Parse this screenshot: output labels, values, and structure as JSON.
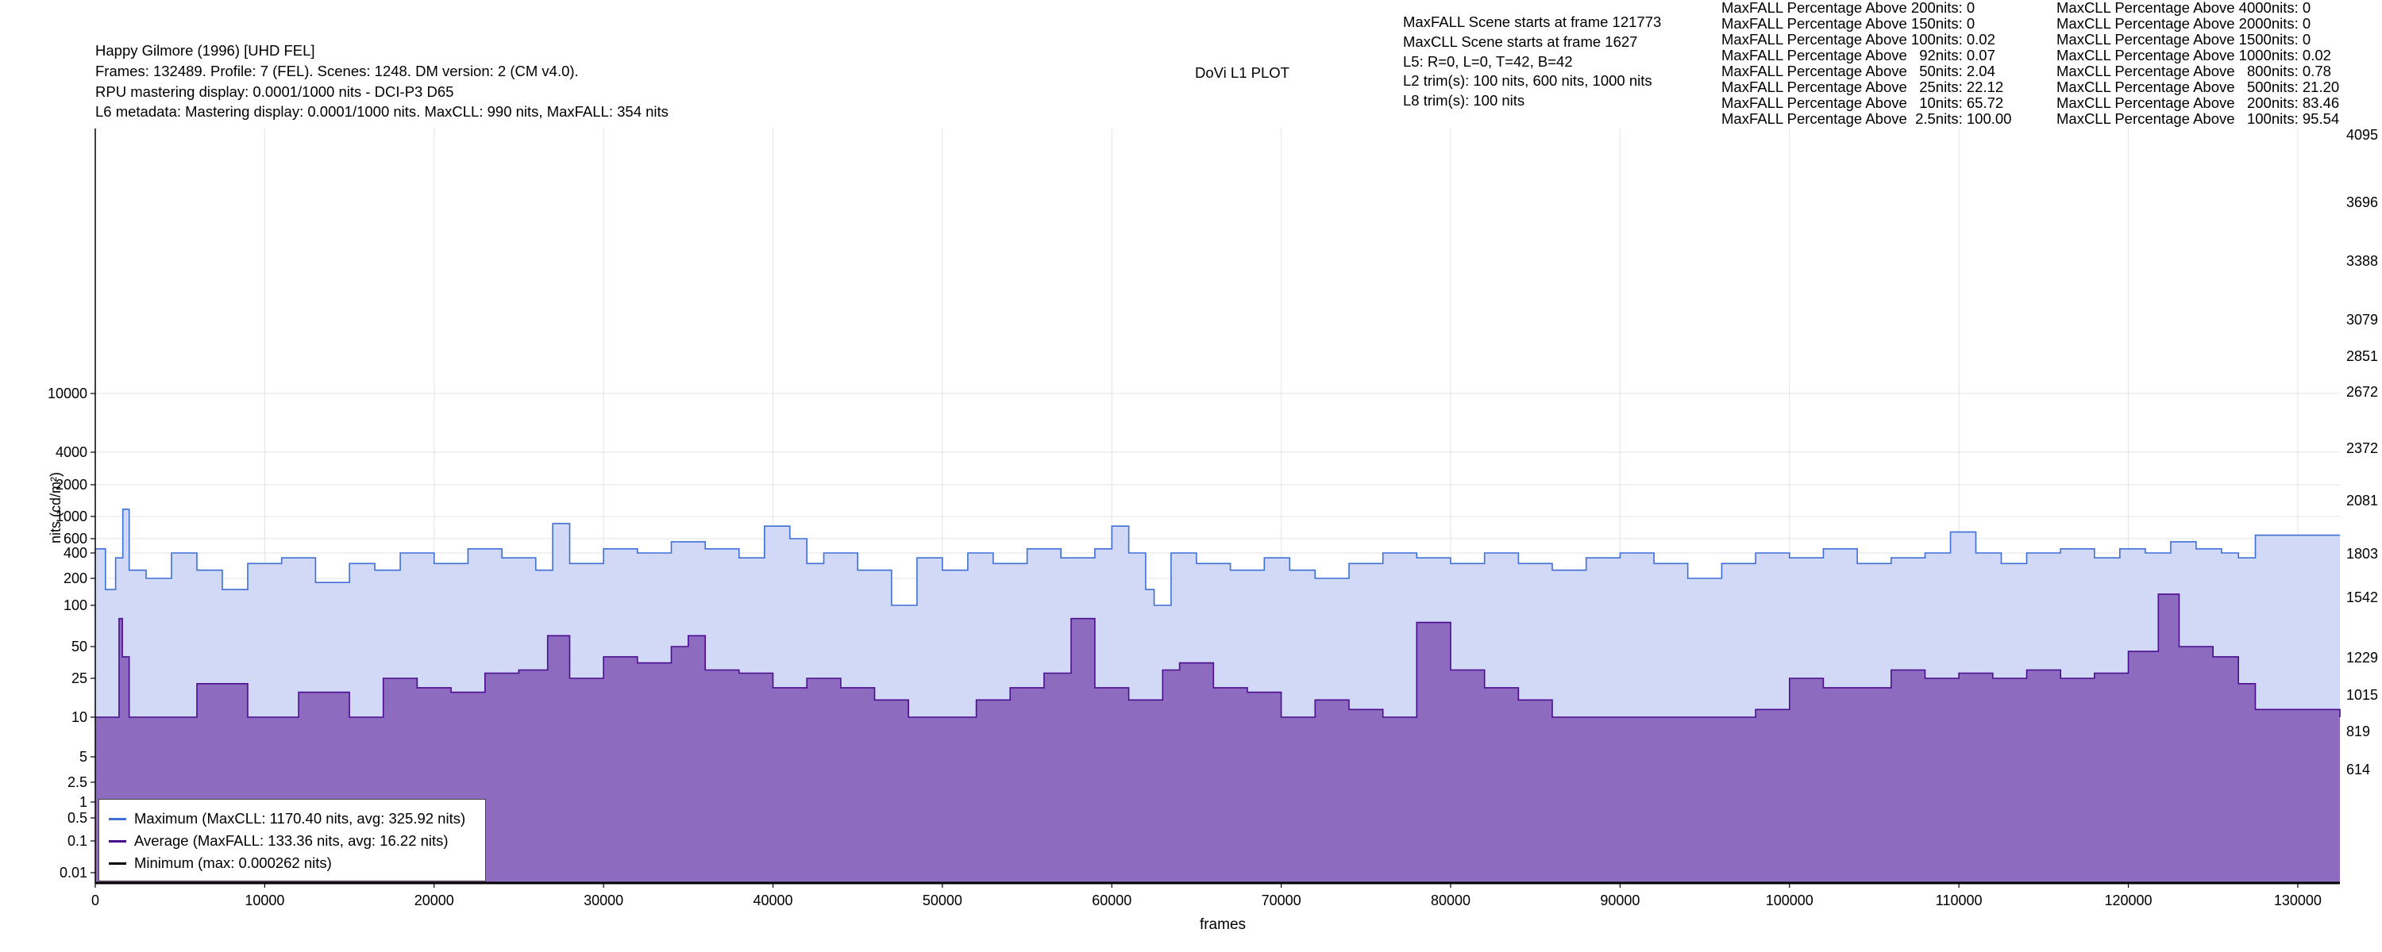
{
  "header": {
    "title": "Happy Gilmore (1996) [UHD FEL]",
    "info_line": "Frames: 132489. Profile: 7 (FEL). Scenes: 1248. DM version: 2 (CM v4.0).",
    "rpu_line": "RPU mastering display: 0.0001/1000 nits - DCI-P3 D65",
    "l6_line": "L6 metadata: Mastering display: 0.0001/1000 nits. MaxCLL: 990 nits, MaxFALL: 354 nits",
    "plot_title": "DoVi L1 PLOT",
    "maxfall_scene": "MaxFALL Scene starts at frame 121773",
    "maxcll_scene": "MaxCLL Scene starts at frame 1627",
    "l5": "L5: R=0, L=0, T=42, B=42",
    "l2": "L2 trim(s): 100 nits, 600 nits, 1000 nits",
    "l8": "L8 trim(s): 100 nits"
  },
  "maxfall_stats": [
    "MaxFALL Percentage Above 200nits: 0",
    "MaxFALL Percentage Above 150nits: 0",
    "MaxFALL Percentage Above 100nits: 0.02",
    "MaxFALL Percentage Above   92nits: 0.07",
    "MaxFALL Percentage Above   50nits: 2.04",
    "MaxFALL Percentage Above   25nits: 22.12",
    "MaxFALL Percentage Above   10nits: 65.72",
    "MaxFALL Percentage Above  2.5nits: 100.00"
  ],
  "maxcll_stats": [
    "MaxCLL Percentage Above 4000nits: 0",
    "MaxCLL Percentage Above 2000nits: 0",
    "MaxCLL Percentage Above 1500nits: 0",
    "MaxCLL Percentage Above 1000nits: 0.02",
    "MaxCLL Percentage Above   800nits: 0.78",
    "MaxCLL Percentage Above   500nits: 21.20",
    "MaxCLL Percentage Above   200nits: 83.46",
    "MaxCLL Percentage Above   100nits: 95.54"
  ],
  "legend": [
    {
      "label": "Maximum (MaxCLL: 1170.40 nits, avg: 325.92 nits)",
      "color": "#3f6fd6"
    },
    {
      "label": "Average (MaxFALL: 133.36 nits, avg: 16.22 nits)",
      "color": "#4b0d8f"
    },
    {
      "label": "Minimum (max: 0.000262 nits)",
      "color": "#000000"
    }
  ],
  "chart_data": {
    "type": "area",
    "xlabel": "frames",
    "ylabel": "nits (cd/m²)",
    "xlim": [
      0,
      132489
    ],
    "x_ticks": [
      0,
      10000,
      20000,
      30000,
      40000,
      50000,
      60000,
      70000,
      80000,
      90000,
      100000,
      110000,
      120000,
      130000
    ],
    "x_tick_labels": [
      "0",
      "10000",
      "20000",
      "30000",
      "40000",
      "50000",
      "60000",
      "70000",
      "80000",
      "90000",
      "100000",
      "110000",
      "120000",
      "130000"
    ],
    "y_tick_labels": [
      "0.01",
      "0.1",
      "0.5",
      "1",
      "2.5",
      "5",
      "10",
      "25",
      "50",
      "100",
      "200",
      "400",
      "600",
      "1000",
      "2000",
      "4000",
      "10000"
    ],
    "y_tick_values": [
      0.01,
      0.1,
      0.5,
      1,
      2.5,
      5,
      10,
      25,
      50,
      100,
      200,
      400,
      600,
      1000,
      2000,
      4000,
      10000
    ],
    "right_tick_labels": [
      "614",
      "819",
      "1015",
      "1229",
      "1542",
      "1803",
      "2081",
      "2372",
      "2672",
      "2851",
      "3079",
      "3388",
      "3696",
      "4095"
    ],
    "grid": true,
    "legend_position": "bottom-left",
    "series": [
      {
        "name": "Maximum",
        "color": "#3f6fd6",
        "fill": "#d1d9f7",
        "x": [
          0,
          600,
          1200,
          1627,
          2000,
          3000,
          4500,
          6000,
          7500,
          9000,
          11000,
          13000,
          15000,
          16500,
          18000,
          20000,
          22000,
          24000,
          26000,
          27000,
          28000,
          30000,
          32000,
          34000,
          36000,
          38000,
          39500,
          41000,
          42000,
          43000,
          45000,
          47000,
          48500,
          50000,
          51500,
          53000,
          55000,
          57000,
          59000,
          60000,
          61000,
          62000,
          62500,
          63500,
          65000,
          67000,
          69000,
          70500,
          72000,
          74000,
          76000,
          78000,
          80000,
          82000,
          84000,
          86000,
          88000,
          90000,
          92000,
          94000,
          96000,
          98000,
          100000,
          102000,
          104000,
          106000,
          108000,
          109500,
          111000,
          112500,
          114000,
          116000,
          118000,
          119500,
          121000,
          122500,
          124000,
          125500,
          126500,
          127500,
          130000,
          132489
        ],
        "values": [
          450,
          150,
          350,
          1170,
          250,
          200,
          400,
          250,
          150,
          300,
          350,
          180,
          300,
          250,
          400,
          300,
          450,
          350,
          250,
          850,
          300,
          450,
          400,
          550,
          450,
          350,
          800,
          600,
          300,
          400,
          250,
          100,
          350,
          250,
          400,
          300,
          450,
          350,
          450,
          800,
          400,
          150,
          100,
          400,
          300,
          250,
          350,
          250,
          200,
          300,
          400,
          350,
          300,
          400,
          300,
          250,
          350,
          400,
          300,
          200,
          300,
          400,
          350,
          450,
          300,
          350,
          400,
          700,
          400,
          300,
          400,
          450,
          350,
          450,
          400,
          550,
          450,
          400,
          350,
          650,
          650,
          650
        ]
      },
      {
        "name": "Average",
        "color": "#4b0d8f",
        "fill": "#8d6bbf",
        "x": [
          0,
          1400,
          1600,
          2000,
          4000,
          6000,
          9000,
          12000,
          15000,
          17000,
          19000,
          21000,
          23000,
          25000,
          26700,
          28000,
          30000,
          32000,
          34000,
          35000,
          36000,
          38000,
          40000,
          42000,
          44000,
          46000,
          48000,
          50000,
          52000,
          54000,
          56000,
          57600,
          59000,
          61000,
          63000,
          64000,
          66000,
          68000,
          70000,
          72000,
          74000,
          76000,
          77000,
          78000,
          80000,
          82000,
          84000,
          86000,
          88000,
          90000,
          92000,
          94000,
          96000,
          98000,
          100000,
          102000,
          104000,
          106000,
          108000,
          110000,
          112000,
          114000,
          116000,
          118000,
          120000,
          121773,
          123000,
          125000,
          126500,
          127500,
          130000,
          132489
        ],
        "values": [
          10,
          80,
          40,
          10,
          10,
          22,
          10,
          18,
          10,
          25,
          20,
          18,
          28,
          30,
          60,
          25,
          40,
          35,
          50,
          60,
          30,
          28,
          20,
          25,
          20,
          15,
          10,
          10,
          15,
          20,
          28,
          80,
          20,
          15,
          30,
          35,
          20,
          18,
          10,
          15,
          12,
          10,
          10,
          75,
          30,
          20,
          15,
          10,
          10,
          10,
          10,
          10,
          10,
          12,
          25,
          20,
          20,
          30,
          25,
          28,
          25,
          30,
          25,
          28,
          45,
          133.36,
          50,
          40,
          22,
          12,
          12,
          10
        ]
      },
      {
        "name": "Minimum",
        "color": "#000000",
        "fill": "none",
        "x": [
          0,
          132489
        ],
        "values": [
          0.0001,
          0.0001
        ]
      }
    ]
  }
}
